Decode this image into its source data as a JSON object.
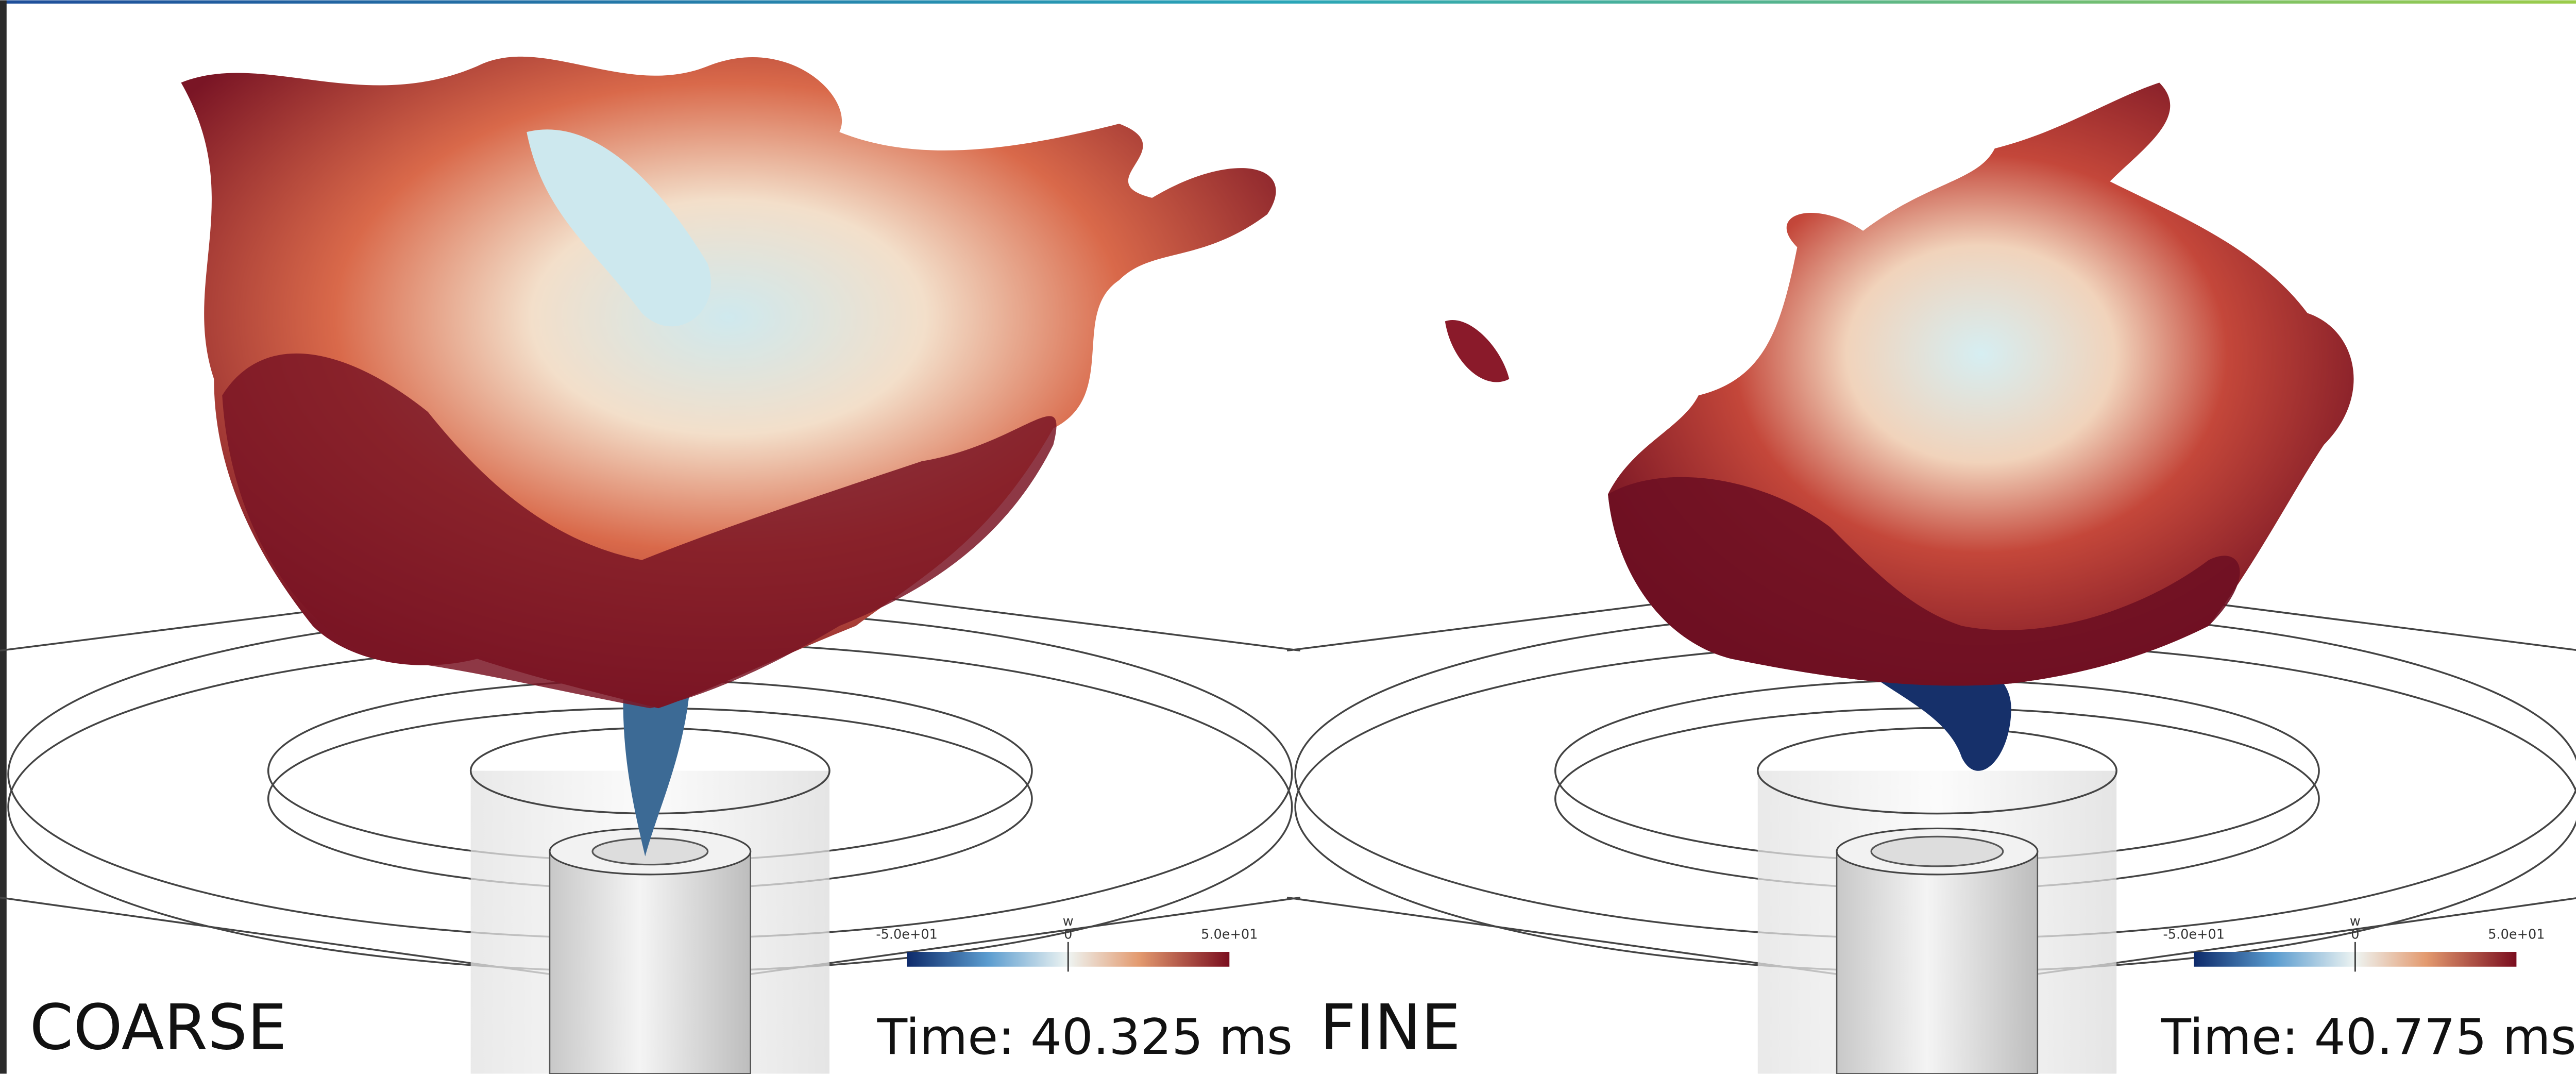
{
  "panels": [
    {
      "label": "COARSE",
      "time": "Time: 40.325 ms",
      "colorbar": {
        "title": "w",
        "min": "-5.0e+01",
        "mid": "0",
        "max": "5.0e+01"
      }
    },
    {
      "label": "FINE",
      "time": "Time: 40.775 ms",
      "colorbar": {
        "title": "w",
        "min": "-5.0e+01",
        "mid": "0",
        "max": "5.0e+01"
      }
    }
  ]
}
